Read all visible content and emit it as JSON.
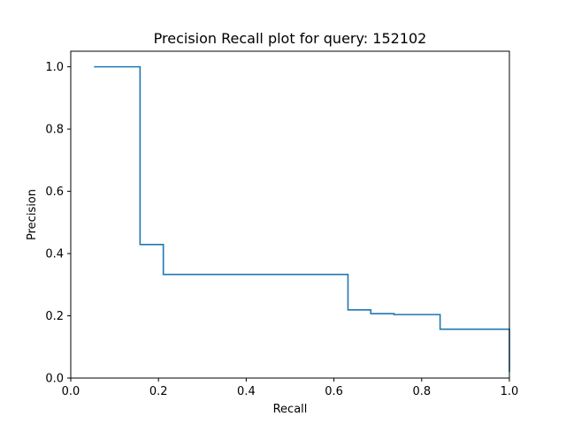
{
  "chart_data": {
    "type": "line",
    "step": "pre",
    "title": "Precision Recall plot for query: 152102",
    "xlabel": "Recall",
    "ylabel": "Precision",
    "xlim": [
      0.0,
      1.0
    ],
    "ylim": [
      0.0,
      1.05
    ],
    "x_ticks": [
      "0.0",
      "0.2",
      "0.4",
      "0.6",
      "0.8",
      "1.0"
    ],
    "y_ticks": [
      "0.0",
      "0.2",
      "0.4",
      "0.6",
      "0.8",
      "1.0"
    ],
    "x_tick_values": [
      0.0,
      0.2,
      0.4,
      0.6,
      0.8,
      1.0
    ],
    "y_tick_values": [
      0.0,
      0.2,
      0.4,
      0.6,
      0.8,
      1.0
    ],
    "grid": false,
    "legend": "none",
    "series": [
      {
        "color": "#1f77b4",
        "x": [
          0.053,
          0.105,
          0.158,
          0.211,
          0.632,
          0.684,
          0.737,
          0.842,
          1.0,
          1.0
        ],
        "y": [
          1.0,
          1.0,
          0.429,
          0.333,
          0.219,
          0.207,
          0.204,
          0.157,
          0.13,
          0.02
        ]
      }
    ]
  }
}
